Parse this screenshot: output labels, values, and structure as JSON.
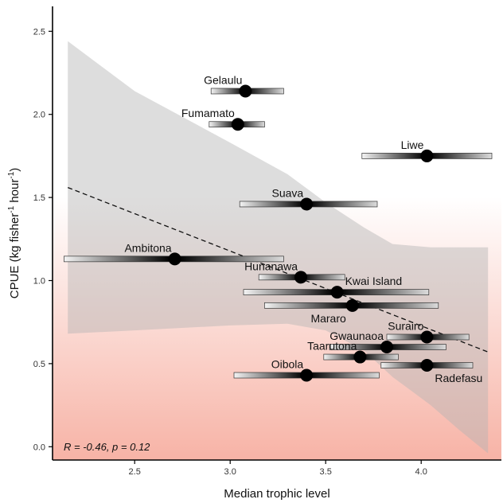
{
  "chart_data": {
    "type": "scatter",
    "xlabel": "Median trophic level",
    "ylabel_main": "CPUE (kg fisher",
    "ylabel_sup1": "-1",
    "ylabel_mid": " hour",
    "ylabel_sup2": "-1",
    "ylabel_end": ")",
    "xlim": [
      2.07,
      4.42
    ],
    "ylim": [
      -0.08,
      2.65
    ],
    "xticks": [
      2.5,
      3.0,
      3.5,
      4.0
    ],
    "yticks": [
      0.0,
      0.5,
      1.0,
      1.5,
      2.0,
      2.5
    ],
    "stats_label": "R = -0.46, p = 0.12",
    "background_gradient": {
      "top_color": "#ffffff",
      "bottom_color": "#f7b3a6"
    },
    "confidence_band": {
      "color": "#b4b4b4",
      "x": [
        2.15,
        2.5,
        3.0,
        3.3,
        3.5,
        3.7,
        3.85,
        4.05,
        4.2,
        4.35
      ],
      "upper": [
        2.44,
        2.14,
        1.83,
        1.64,
        1.47,
        1.32,
        1.22,
        1.2,
        1.2,
        1.2
      ],
      "lower": [
        0.68,
        0.7,
        0.73,
        0.74,
        0.7,
        0.58,
        0.42,
        0.25,
        0.1,
        -0.04
      ]
    },
    "trend_line": {
      "x": [
        2.15,
        4.35
      ],
      "y": [
        1.56,
        0.57
      ]
    },
    "points": [
      {
        "label": "Gelaulu",
        "x": 3.08,
        "y": 2.14,
        "xmin": 2.9,
        "xmax": 3.28,
        "label_side": "above-left"
      },
      {
        "label": "Fumamato",
        "x": 3.04,
        "y": 1.94,
        "xmin": 2.89,
        "xmax": 3.18,
        "label_side": "above-left"
      },
      {
        "label": "Liwe",
        "x": 4.03,
        "y": 1.75,
        "xmin": 3.69,
        "xmax": 4.37,
        "label_side": "above-left"
      },
      {
        "label": "Suava",
        "x": 3.4,
        "y": 1.46,
        "xmin": 3.05,
        "xmax": 3.77,
        "label_side": "above-left"
      },
      {
        "label": "Ambitona",
        "x": 2.71,
        "y": 1.13,
        "xmin": 2.13,
        "xmax": 3.28,
        "label_side": "above-left"
      },
      {
        "label": "Hunanawa",
        "x": 3.37,
        "y": 1.02,
        "xmin": 3.15,
        "xmax": 3.6,
        "label_side": "above-left"
      },
      {
        "label": "Kwai Island",
        "x": 3.56,
        "y": 0.93,
        "xmin": 3.07,
        "xmax": 4.04,
        "label_side": "above-right"
      },
      {
        "label": "Mararo",
        "x": 3.64,
        "y": 0.85,
        "xmin": 3.18,
        "xmax": 4.09,
        "label_side": "below-left"
      },
      {
        "label": "Surairo",
        "x": 4.03,
        "y": 0.66,
        "xmin": 3.82,
        "xmax": 4.25,
        "label_side": "above-left"
      },
      {
        "label": "Gwaunaoa",
        "x": 3.82,
        "y": 0.6,
        "xmin": 3.52,
        "xmax": 4.13,
        "label_side": "above-left"
      },
      {
        "label": "Taarutona",
        "x": 3.68,
        "y": 0.54,
        "xmin": 3.49,
        "xmax": 3.88,
        "label_side": "above-left"
      },
      {
        "label": "Radefasu",
        "x": 4.03,
        "y": 0.49,
        "xmin": 3.79,
        "xmax": 4.27,
        "label_side": "below-right"
      },
      {
        "label": "Oibola",
        "x": 3.4,
        "y": 0.43,
        "xmin": 3.02,
        "xmax": 3.78,
        "label_side": "above-left"
      }
    ]
  }
}
